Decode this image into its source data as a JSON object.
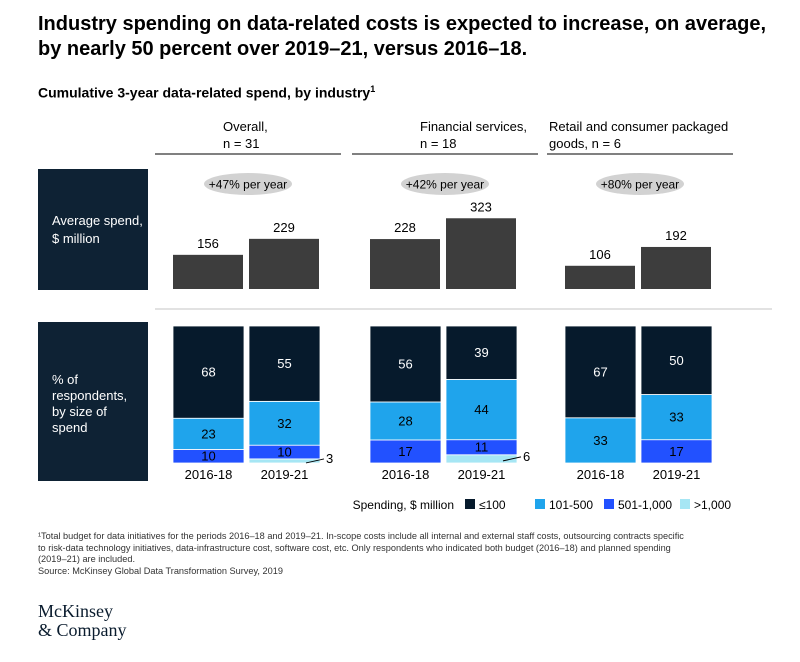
{
  "title": "Industry spending on data-related costs is expected to increase, on average, by nearly 50 percent over 2019–21, versus 2016–18.",
  "subtitle": "Cumulative 3-year data-related spend, by industry",
  "subtitle_sup": "1",
  "colors": {
    "dark_panel": "#0e2234",
    "average_bar": "#3d3d3d",
    "pill": "#d2d2d2",
    "le100": "#061a2c",
    "101_500": "#1fa4ec",
    "501_1000": "#2251ff",
    "gt1000": "#a6e6f4"
  },
  "row_labels": {
    "average": [
      "Average spend,",
      "$ million"
    ],
    "respondents": [
      "% of",
      "respondents,",
      "by size of",
      "spend"
    ]
  },
  "chart_data": [
    {
      "type": "bar",
      "title": "Average spend, $ million",
      "categories": [
        "Overall, n = 31",
        "Financial services, n = 18",
        "Retail and consumer packaged goods, n = 6"
      ],
      "periods": [
        "2016-18",
        "2019-21"
      ],
      "series": [
        {
          "name": "2016-18",
          "values": [
            156,
            228,
            106
          ]
        },
        {
          "name": "2019-21",
          "values": [
            229,
            323,
            192
          ]
        }
      ],
      "annotations": [
        "+47% per year",
        "+42% per year",
        "+80% per year"
      ]
    },
    {
      "type": "bar",
      "stacked": true,
      "title": "% of respondents, by size of spend",
      "legend_title": "Spending, $ million",
      "legend_placement": "bottom-right",
      "legend": [
        "≤100",
        "101-500",
        "501-1,000",
        ">1,000"
      ],
      "groups": [
        {
          "header": [
            "Overall,",
            "n = 31"
          ],
          "bars": [
            {
              "label": "2016-18",
              "values": [
                68,
                23,
                10,
                0
              ]
            },
            {
              "label": "2019-21",
              "values": [
                55,
                32,
                10,
                3
              ]
            }
          ]
        },
        {
          "header": [
            "Financial services,",
            "n = 18"
          ],
          "bars": [
            {
              "label": "2016-18",
              "values": [
                56,
                28,
                17,
                0
              ]
            },
            {
              "label": "2019-21",
              "values": [
                39,
                44,
                11,
                6
              ]
            }
          ]
        },
        {
          "header": [
            "Retail and consumer packaged",
            "goods, n = 6"
          ],
          "bars": [
            {
              "label": "2016-18",
              "values": [
                67,
                33,
                0,
                0
              ]
            },
            {
              "label": "2019-21",
              "values": [
                50,
                33,
                17,
                0
              ]
            }
          ]
        }
      ]
    }
  ],
  "footnote": [
    "¹Total budget for data initiatives for the periods 2016–18 and 2019–21. In-scope costs include all internal and external staff costs, outsourcing contracts specific",
    "  to risk-data technology initiatives, data-infrastructure cost, software cost, etc. Only respondents who indicated both budget (2016–18) and planned spending",
    "  (2019–21) are included.",
    "  Source: McKinsey Global Data Transformation Survey, 2019"
  ],
  "logo": [
    "McKinsey",
    "& Company"
  ]
}
